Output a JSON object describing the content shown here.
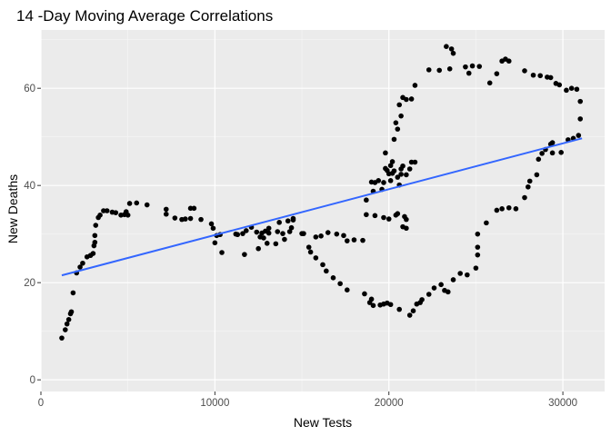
{
  "chart_data": {
    "type": "scatter",
    "title": "14 -Day Moving Average Correlations",
    "xlabel": "New Tests",
    "ylabel": "New Deaths",
    "xlim": [
      0,
      32400
    ],
    "ylim": [
      -2.4,
      72
    ],
    "x_ticks": [
      0,
      10000,
      20000,
      30000
    ],
    "x_tick_labels": [
      "0",
      "10000",
      "20000",
      "30000"
    ],
    "y_ticks": [
      0,
      20,
      40,
      60
    ],
    "y_tick_labels": [
      "0",
      "20",
      "40",
      "60"
    ],
    "grid": true,
    "panel_background": "#ebebeb",
    "point_color": "#000000",
    "trend_line": {
      "color": "#3366ff",
      "x": [
        1200,
        31100
      ],
      "y": [
        21.5,
        49.7
      ]
    },
    "points": [
      [
        1200,
        8.6
      ],
      [
        1400,
        10.3
      ],
      [
        1500,
        11.5
      ],
      [
        1600,
        12.4
      ],
      [
        1700,
        13.6
      ],
      [
        1750,
        14.0
      ],
      [
        1850,
        17.9
      ],
      [
        2050,
        22.0
      ],
      [
        2250,
        23.2
      ],
      [
        2400,
        24.0
      ],
      [
        2650,
        25.3
      ],
      [
        2850,
        25.6
      ],
      [
        3000,
        26.0
      ],
      [
        3050,
        27.6
      ],
      [
        3100,
        28.3
      ],
      [
        3100,
        29.7
      ],
      [
        3150,
        31.8
      ],
      [
        3300,
        33.4
      ],
      [
        3400,
        33.9
      ],
      [
        3600,
        34.8
      ],
      [
        3800,
        34.8
      ],
      [
        4100,
        34.5
      ],
      [
        4300,
        34.4
      ],
      [
        4600,
        33.9
      ],
      [
        4800,
        34.0
      ],
      [
        4900,
        34.6
      ],
      [
        5000,
        33.9
      ],
      [
        5100,
        36.3
      ],
      [
        5500,
        36.4
      ],
      [
        6100,
        36.0
      ],
      [
        7200,
        35.1
      ],
      [
        7200,
        34.1
      ],
      [
        7700,
        33.3
      ],
      [
        8100,
        33.0
      ],
      [
        8300,
        33.1
      ],
      [
        8600,
        33.2
      ],
      [
        8600,
        35.3
      ],
      [
        8800,
        35.3
      ],
      [
        9200,
        33.0
      ],
      [
        9800,
        32.1
      ],
      [
        9900,
        31.2
      ],
      [
        10000,
        28.2
      ],
      [
        10100,
        29.7
      ],
      [
        10300,
        29.9
      ],
      [
        10400,
        26.2
      ],
      [
        11200,
        30.0
      ],
      [
        11300,
        29.9
      ],
      [
        11600,
        30.1
      ],
      [
        11700,
        25.8
      ],
      [
        11800,
        30.7
      ],
      [
        12100,
        31.4
      ],
      [
        12400,
        30.4
      ],
      [
        12500,
        27.0
      ],
      [
        12600,
        29.4
      ],
      [
        12700,
        30.2
      ],
      [
        12800,
        29.2
      ],
      [
        12900,
        30.6
      ],
      [
        13000,
        28.1
      ],
      [
        13100,
        30.2
      ],
      [
        13100,
        31.2
      ],
      [
        13500,
        28.0
      ],
      [
        13600,
        30.5
      ],
      [
        13700,
        32.4
      ],
      [
        13900,
        30.1
      ],
      [
        14000,
        28.9
      ],
      [
        14200,
        32.7
      ],
      [
        14300,
        30.5
      ],
      [
        14400,
        31.3
      ],
      [
        14500,
        33.2
      ],
      [
        14500,
        32.9
      ],
      [
        15000,
        30.1
      ],
      [
        15100,
        30.1
      ],
      [
        15400,
        27.3
      ],
      [
        15500,
        26.3
      ],
      [
        15800,
        25.1
      ],
      [
        15800,
        29.4
      ],
      [
        16100,
        29.6
      ],
      [
        16200,
        23.7
      ],
      [
        16400,
        22.4
      ],
      [
        16500,
        30.3
      ],
      [
        16800,
        21.0
      ],
      [
        17000,
        30.0
      ],
      [
        17200,
        19.8
      ],
      [
        17400,
        29.7
      ],
      [
        17600,
        18.5
      ],
      [
        17600,
        28.6
      ],
      [
        18000,
        28.8
      ],
      [
        18500,
        28.7
      ],
      [
        18600,
        17.7
      ],
      [
        18700,
        34.0
      ],
      [
        18900,
        15.9
      ],
      [
        19000,
        16.6
      ],
      [
        19100,
        15.3
      ],
      [
        19200,
        33.8
      ],
      [
        19500,
        15.4
      ],
      [
        19700,
        33.4
      ],
      [
        19700,
        15.6
      ],
      [
        19900,
        15.8
      ],
      [
        20000,
        33.1
      ],
      [
        20100,
        15.5
      ],
      [
        20400,
        33.9
      ],
      [
        20500,
        34.2
      ],
      [
        20600,
        14.5
      ],
      [
        20800,
        31.5
      ],
      [
        20900,
        33.6
      ],
      [
        21000,
        33.0
      ],
      [
        21000,
        31.2
      ],
      [
        21200,
        13.3
      ],
      [
        21400,
        14.2
      ],
      [
        21600,
        15.6
      ],
      [
        21800,
        15.9
      ],
      [
        21900,
        16.5
      ],
      [
        22300,
        17.6
      ],
      [
        22600,
        18.9
      ],
      [
        23000,
        19.6
      ],
      [
        23200,
        18.4
      ],
      [
        23400,
        18.1
      ],
      [
        23700,
        20.6
      ],
      [
        24100,
        21.9
      ],
      [
        24500,
        21.6
      ],
      [
        25000,
        23.0
      ],
      [
        25100,
        25.7
      ],
      [
        25100,
        27.3
      ],
      [
        25100,
        30.0
      ],
      [
        25600,
        32.3
      ],
      [
        26200,
        34.9
      ],
      [
        26500,
        35.2
      ],
      [
        26900,
        35.4
      ],
      [
        27300,
        35.2
      ],
      [
        27800,
        37.5
      ],
      [
        28000,
        39.7
      ],
      [
        28100,
        40.9
      ],
      [
        28500,
        42.2
      ],
      [
        28600,
        45.4
      ],
      [
        28800,
        46.6
      ],
      [
        29000,
        47.4
      ],
      [
        29300,
        48.5
      ],
      [
        29400,
        46.7
      ],
      [
        29400,
        48.8
      ],
      [
        29900,
        46.8
      ],
      [
        30300,
        49.4
      ],
      [
        30600,
        49.7
      ],
      [
        30900,
        50.3
      ],
      [
        31000,
        53.7
      ],
      [
        31000,
        57.3
      ],
      [
        30800,
        59.8
      ],
      [
        30500,
        60.0
      ],
      [
        30200,
        59.6
      ],
      [
        29800,
        60.7
      ],
      [
        29600,
        61.0
      ],
      [
        29300,
        62.2
      ],
      [
        29100,
        62.3
      ],
      [
        28700,
        62.6
      ],
      [
        28300,
        62.7
      ],
      [
        27800,
        63.6
      ],
      [
        26900,
        65.6
      ],
      [
        26700,
        66.0
      ],
      [
        26500,
        65.6
      ],
      [
        26200,
        63.0
      ],
      [
        25800,
        61.1
      ],
      [
        25200,
        64.5
      ],
      [
        24800,
        64.6
      ],
      [
        24600,
        63.1
      ],
      [
        24400,
        64.4
      ],
      [
        23700,
        67.2
      ],
      [
        23600,
        68.1
      ],
      [
        23500,
        64.0
      ],
      [
        23300,
        68.6
      ],
      [
        22900,
        63.7
      ],
      [
        22300,
        63.8
      ],
      [
        21500,
        60.6
      ],
      [
        21300,
        57.8
      ],
      [
        21000,
        57.7
      ],
      [
        20800,
        58.1
      ],
      [
        20700,
        54.3
      ],
      [
        20600,
        56.6
      ],
      [
        20500,
        51.6
      ],
      [
        20400,
        52.9
      ],
      [
        20300,
        49.5
      ],
      [
        20200,
        44.9
      ],
      [
        20100,
        44.1
      ],
      [
        20000,
        42.4
      ],
      [
        19900,
        43.1
      ],
      [
        19800,
        43.5
      ],
      [
        19800,
        46.7
      ],
      [
        19700,
        40.6
      ],
      [
        19600,
        39.2
      ],
      [
        19400,
        41.0
      ],
      [
        19200,
        40.6
      ],
      [
        19100,
        38.8
      ],
      [
        19000,
        40.7
      ],
      [
        20100,
        41.0
      ],
      [
        20200,
        42.5
      ],
      [
        20300,
        43.0
      ],
      [
        20500,
        41.7
      ],
      [
        20600,
        40.1
      ],
      [
        20700,
        42.3
      ],
      [
        20700,
        43.4
      ],
      [
        20800,
        44.0
      ],
      [
        21000,
        42.2
      ],
      [
        21200,
        43.4
      ],
      [
        21300,
        44.8
      ],
      [
        21500,
        44.8
      ],
      [
        18700,
        37.0
      ]
    ]
  }
}
